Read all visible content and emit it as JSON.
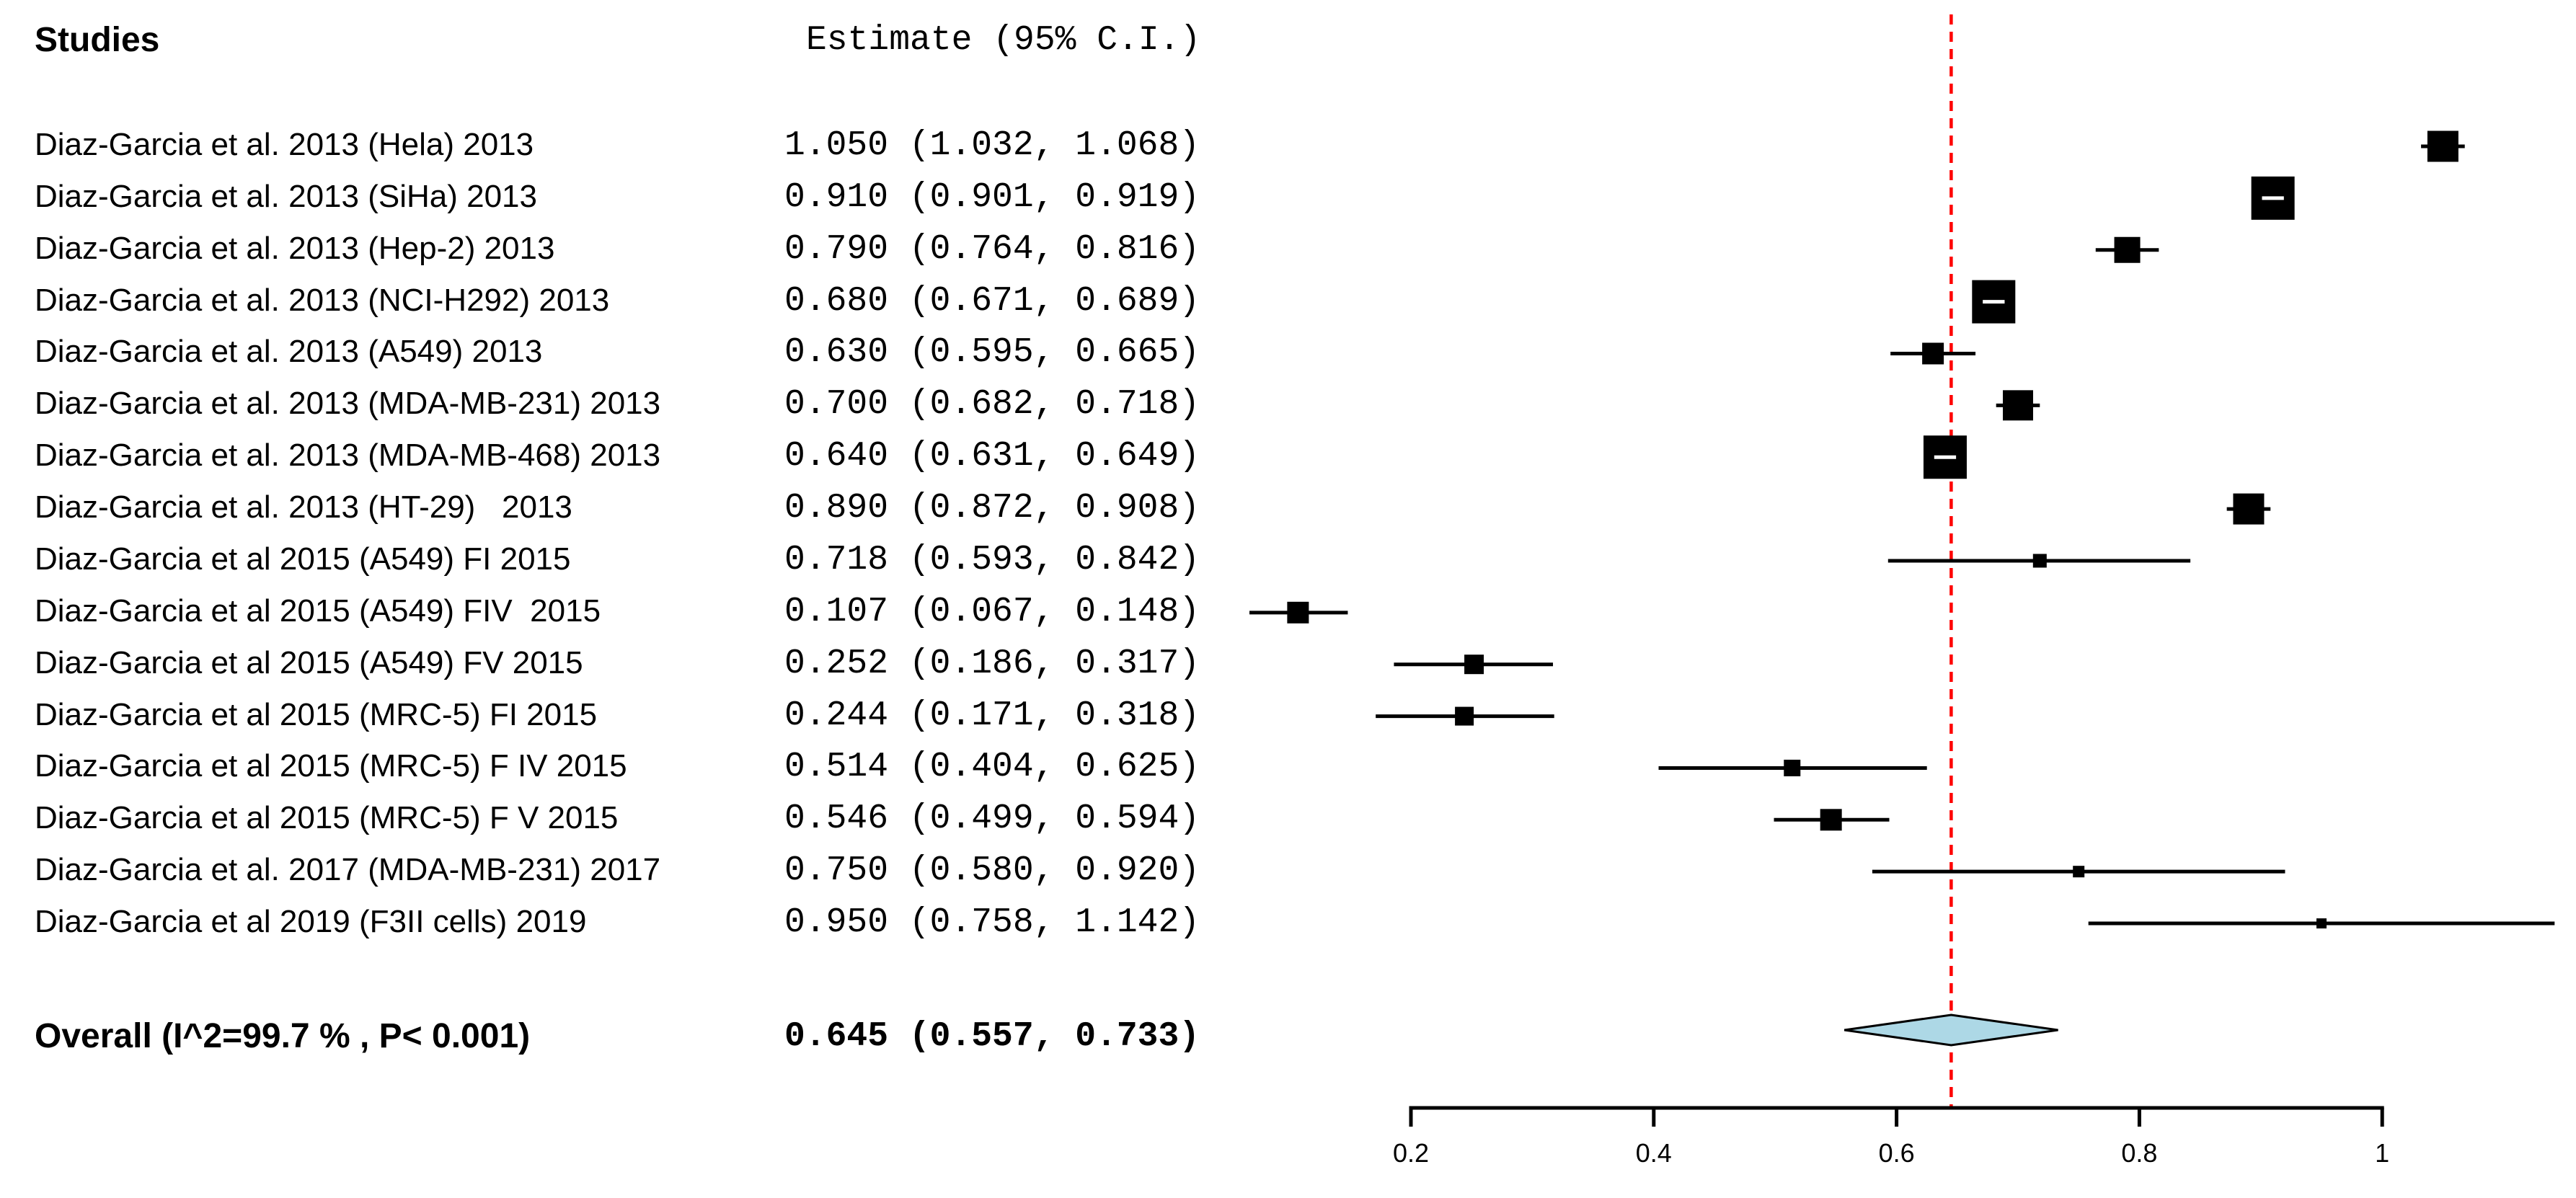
{
  "header": {
    "studies_label": "Studies",
    "estimate_label": "Estimate (95% C.I.)"
  },
  "overall": {
    "label": "Overall (I^2=99.7 % , P< 0.001)",
    "estimate_text": "0.645 (0.557, 0.733)",
    "estimate": 0.645,
    "ci_low": 0.557,
    "ci_high": 0.733
  },
  "colors": {
    "reference_line": "#FF0000",
    "diamond_fill": "#ADD8E6",
    "marker": "#000000",
    "axis": "#000000",
    "text": "#000000",
    "background": "#FFFFFF"
  },
  "chart_data": {
    "type": "forest",
    "title": "",
    "xlabel": "",
    "x_ticks": [
      0.2,
      0.4,
      0.6,
      0.8,
      1
    ],
    "x_tick_labels": [
      "0.2",
      "0.4",
      "0.6",
      "0.8",
      "1"
    ],
    "xlim": [
      0.2,
      1.0
    ],
    "reference_value": 0.645,
    "grid": false,
    "legend_position": "none",
    "studies": [
      {
        "label": "Diaz-Garcia et al. 2013 (Hela) 2013",
        "estimate_text": "1.050 (1.032, 1.068)",
        "estimate": 1.05,
        "ci_low": 1.032,
        "ci_high": 1.068,
        "size": 43
      },
      {
        "label": "Diaz-Garcia et al. 2013 (SiHa) 2013",
        "estimate_text": "0.910 (0.901, 0.919)",
        "estimate": 0.91,
        "ci_low": 0.901,
        "ci_high": 0.919,
        "size": 60
      },
      {
        "label": "Diaz-Garcia et al. 2013 (Hep-2) 2013",
        "estimate_text": "0.790 (0.764, 0.816)",
        "estimate": 0.79,
        "ci_low": 0.764,
        "ci_high": 0.816,
        "size": 36
      },
      {
        "label": "Diaz-Garcia et al. 2013 (NCI-H292) 2013",
        "estimate_text": "0.680 (0.671, 0.689)",
        "estimate": 0.68,
        "ci_low": 0.671,
        "ci_high": 0.689,
        "size": 60
      },
      {
        "label": "Diaz-Garcia et al. 2013 (A549) 2013",
        "estimate_text": "0.630 (0.595, 0.665)",
        "estimate": 0.63,
        "ci_low": 0.595,
        "ci_high": 0.665,
        "size": 30
      },
      {
        "label": "Diaz-Garcia et al. 2013 (MDA-MB-231) 2013",
        "estimate_text": "0.700 (0.682, 0.718)",
        "estimate": 0.7,
        "ci_low": 0.682,
        "ci_high": 0.718,
        "size": 42
      },
      {
        "label": "Diaz-Garcia et al. 2013 (MDA-MB-468) 2013",
        "estimate_text": "0.640 (0.631, 0.649)",
        "estimate": 0.64,
        "ci_low": 0.631,
        "ci_high": 0.649,
        "size": 60
      },
      {
        "label": "Diaz-Garcia et al. 2013 (HT-29)   2013",
        "estimate_text": "0.890 (0.872, 0.908)",
        "estimate": 0.89,
        "ci_low": 0.872,
        "ci_high": 0.908,
        "size": 43
      },
      {
        "label": "Diaz-Garcia et al 2015 (A549) FI 2015",
        "estimate_text": "0.718 (0.593, 0.842)",
        "estimate": 0.718,
        "ci_low": 0.593,
        "ci_high": 0.842,
        "size": 19
      },
      {
        "label": "Diaz-Garcia et al 2015 (A549) FIV  2015",
        "estimate_text": "0.107 (0.067, 0.148)",
        "estimate": 0.107,
        "ci_low": 0.067,
        "ci_high": 0.148,
        "size": 30
      },
      {
        "label": "Diaz-Garcia et al 2015 (A549) FV 2015",
        "estimate_text": "0.252 (0.186, 0.317)",
        "estimate": 0.252,
        "ci_low": 0.186,
        "ci_high": 0.317,
        "size": 27
      },
      {
        "label": "Diaz-Garcia et al 2015 (MRC-5) FI 2015",
        "estimate_text": "0.244 (0.171, 0.318)",
        "estimate": 0.244,
        "ci_low": 0.171,
        "ci_high": 0.318,
        "size": 26
      },
      {
        "label": "Diaz-Garcia et al 2015 (MRC-5) F IV 2015",
        "estimate_text": "0.514 (0.404, 0.625)",
        "estimate": 0.514,
        "ci_low": 0.404,
        "ci_high": 0.625,
        "size": 23
      },
      {
        "label": "Diaz-Garcia et al 2015 (MRC-5) F V 2015",
        "estimate_text": "0.546 (0.499, 0.594)",
        "estimate": 0.546,
        "ci_low": 0.499,
        "ci_high": 0.594,
        "size": 30
      },
      {
        "label": "Diaz-Garcia et al. 2017 (MDA-MB-231) 2017",
        "estimate_text": "0.750 (0.580, 0.920)",
        "estimate": 0.75,
        "ci_low": 0.58,
        "ci_high": 0.92,
        "size": 16
      },
      {
        "label": "Diaz-Garcia et al 2019 (F3II cells) 2019",
        "estimate_text": "0.950 (0.758, 1.142)",
        "estimate": 0.95,
        "ci_low": 0.758,
        "ci_high": 1.142,
        "size": 14
      }
    ]
  }
}
